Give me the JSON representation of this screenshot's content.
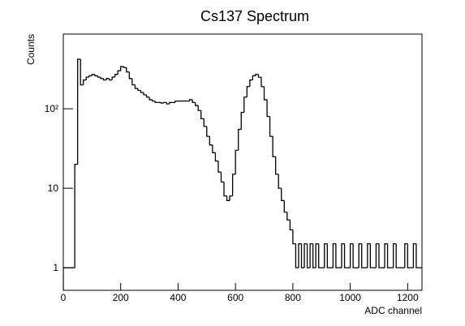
{
  "chart_data": {
    "type": "histogram",
    "title": "Cs137 Spectrum",
    "x_label": "ADC channel",
    "y_label": "Counts",
    "bins": [
      0,
      10,
      20,
      30,
      40,
      50,
      60,
      70,
      80,
      90,
      100,
      110,
      120,
      130,
      140,
      150,
      160,
      170,
      180,
      190,
      200,
      210,
      220,
      230,
      240,
      250,
      260,
      270,
      280,
      290,
      300,
      310,
      320,
      330,
      340,
      350,
      360,
      370,
      380,
      390,
      400,
      410,
      420,
      430,
      440,
      450,
      460,
      470,
      480,
      490,
      500,
      510,
      520,
      530,
      540,
      550,
      560,
      570,
      580,
      590,
      600,
      610,
      620,
      630,
      640,
      650,
      660,
      670,
      680,
      690,
      700,
      710,
      720,
      730,
      740,
      750,
      760,
      770,
      780,
      790,
      800,
      810,
      820,
      830,
      840,
      850,
      860,
      870,
      880,
      890,
      900,
      910,
      920,
      930,
      940,
      950,
      960,
      970,
      980,
      990,
      1000,
      1010,
      1020,
      1030,
      1040,
      1050,
      1060,
      1070,
      1080,
      1090,
      1100,
      1110,
      1120,
      1130,
      1140,
      1150,
      1160,
      1170,
      1180,
      1190,
      1200,
      1210,
      1220,
      1230,
      1240,
      1250
    ],
    "counts": [
      1,
      1,
      1,
      1,
      20,
      420,
      200,
      230,
      250,
      260,
      270,
      260,
      250,
      240,
      230,
      240,
      230,
      250,
      270,
      300,
      340,
      330,
      290,
      240,
      200,
      180,
      170,
      160,
      150,
      140,
      130,
      125,
      120,
      120,
      118,
      120,
      115,
      120,
      120,
      125,
      125,
      125,
      125,
      125,
      130,
      120,
      110,
      95,
      75,
      60,
      45,
      35,
      28,
      22,
      16,
      12,
      8,
      7,
      8,
      15,
      30,
      55,
      90,
      140,
      190,
      230,
      260,
      270,
      250,
      190,
      130,
      80,
      45,
      25,
      15,
      10,
      7,
      5,
      4,
      3,
      2,
      1,
      2,
      1,
      2,
      1,
      2,
      1,
      2,
      1,
      1,
      2,
      1,
      1,
      2,
      1,
      1,
      2,
      1,
      1,
      2,
      1,
      1,
      2,
      1,
      1,
      2,
      1,
      1,
      2,
      1,
      1,
      2,
      1,
      1,
      2,
      1,
      1,
      1,
      2,
      1,
      1,
      2,
      1,
      1
    ],
    "color": "#000000",
    "log_y": true,
    "xlim": [
      0,
      1250
    ],
    "xticks": [
      0,
      200,
      400,
      600,
      800,
      1000,
      1200
    ],
    "ylim": [
      0.52,
      870
    ],
    "yticks": [
      1,
      10,
      {
        "value": 100,
        "label": "10²"
      }
    ]
  }
}
